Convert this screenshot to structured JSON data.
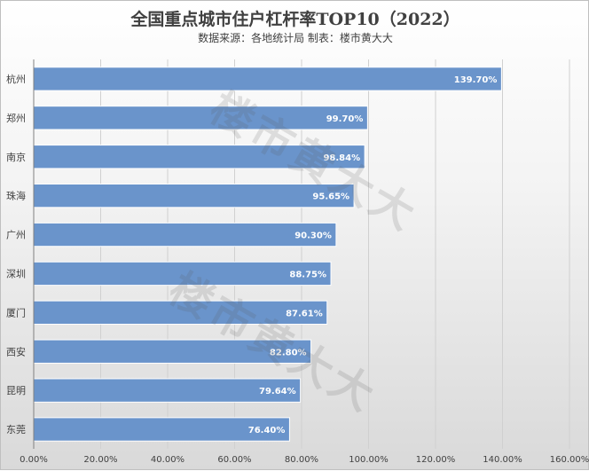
{
  "chart_data": {
    "type": "bar",
    "orientation": "horizontal",
    "title": "全国重点城市住户杠杆率TOP10（2022）",
    "subtitle": "数据来源：各地统计局   制表：楼市黄大大",
    "categories": [
      "杭州",
      "郑州",
      "南京",
      "珠海",
      "广州",
      "深圳",
      "厦门",
      "西安",
      "昆明",
      "东莞"
    ],
    "values": [
      139.7,
      99.7,
      98.84,
      95.65,
      90.3,
      88.75,
      87.61,
      82.8,
      79.64,
      76.4
    ],
    "data_labels": [
      "139.70%",
      "99.70%",
      "98.84%",
      "95.65%",
      "90.30%",
      "88.75%",
      "87.61%",
      "82.80%",
      "79.64%",
      "76.40%"
    ],
    "x_ticks": [
      "0.00%",
      "20.00%",
      "40.00%",
      "60.00%",
      "80.00%",
      "100.00%",
      "120.00%",
      "140.00%",
      "160.00%"
    ],
    "xlim": [
      0,
      160
    ],
    "xlabel": "",
    "ylabel": "",
    "grid": "vertical",
    "bar_color": "#6a94cb",
    "watermark": "楼市黄大大"
  }
}
